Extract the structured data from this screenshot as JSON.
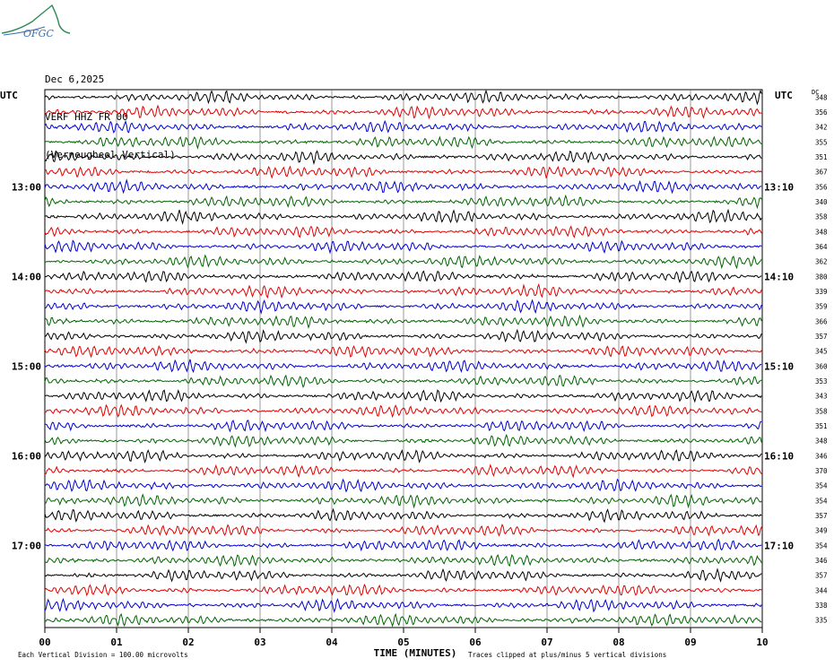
{
  "logo_text": "OFGC",
  "header": {
    "date": "Dec 6,2025",
    "station": "VERF HHZ FR 00",
    "location": "(Verneugheol Vertical)"
  },
  "chart_data": {
    "type": "line",
    "title": "",
    "xlabel": "TIME (MINUTES)",
    "ylabel": "",
    "x_ticks": [
      "00",
      "01",
      "02",
      "03",
      "04",
      "05",
      "06",
      "07",
      "08",
      "09",
      "10"
    ],
    "xlim": [
      0,
      10
    ],
    "left_axis_title": "UTC",
    "right_axis_title": "UTC",
    "dc_header": "DC",
    "left_hour_labels": [
      {
        "row": 6,
        "text": "13:00"
      },
      {
        "row": 12,
        "text": "14:00"
      },
      {
        "row": 18,
        "text": "15:00"
      },
      {
        "row": 24,
        "text": "16:00"
      },
      {
        "row": 30,
        "text": "17:00"
      }
    ],
    "right_time_labels": [
      {
        "row": 6,
        "text": "13:10"
      },
      {
        "row": 12,
        "text": "14:10"
      },
      {
        "row": 18,
        "text": "15:10"
      },
      {
        "row": 24,
        "text": "16:10"
      },
      {
        "row": 30,
        "text": "17:10"
      }
    ],
    "trace_colors": [
      "#000000",
      "#e00000",
      "#0000d0",
      "#006400"
    ],
    "dc_offsets": [
      348,
      356,
      342,
      355,
      351,
      367,
      356,
      340,
      358,
      348,
      364,
      362,
      380,
      339,
      359,
      366,
      357,
      345,
      360,
      353,
      343,
      358,
      351,
      348,
      346,
      370,
      354,
      354,
      357,
      349,
      354,
      346,
      357,
      344,
      338,
      335
    ],
    "footer_left": "Each Vertical Division =  100.00 microvolts",
    "footer_right": "Traces clipped at plus/minus 5 vertical divisions"
  }
}
